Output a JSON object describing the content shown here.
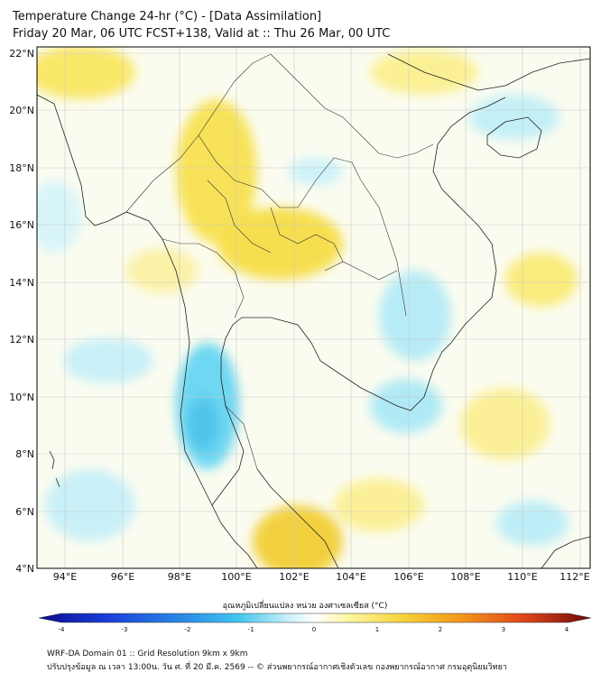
{
  "title": {
    "line1": "Temperature Change 24-hr (°C) - [Data Assimilation]",
    "line2": "Friday 20 Mar, 06 UTC FCST+138, Valid at :: Thu 26 Mar, 00 UTC"
  },
  "map": {
    "lat_labels": [
      "22°N",
      "20°N",
      "18°N",
      "16°N",
      "14°N",
      "12°N",
      "10°N",
      "8°N",
      "6°N",
      "4°N"
    ],
    "lon_labels": [
      "94°E",
      "96°E",
      "98°E",
      "100°E",
      "102°E",
      "104°E",
      "106°E",
      "108°E",
      "110°E",
      "112°E"
    ],
    "lat_range": [
      4,
      22.2
    ],
    "lon_range": [
      93,
      112.3
    ],
    "grid": true
  },
  "colorbar": {
    "label": "อุณหภูมิเปลี่ยนแปลง หน่วย องศาเซลเซียส (°C)",
    "ticks": [
      "-4",
      "-3",
      "-2",
      "-1",
      "0",
      "1",
      "2",
      "3",
      "4"
    ],
    "range": [
      -4,
      4
    ],
    "colors": [
      "#0a0a8c",
      "#1a3cd8",
      "#2a8ae6",
      "#3fc6ee",
      "#a7e8f6",
      "#ffffff",
      "#fff6a0",
      "#f7d23a",
      "#f39a1c",
      "#e0441a",
      "#a8120e",
      "#6a0a0a"
    ]
  },
  "footer": {
    "line1": "WRF-DA Domain 01 :: Grid Resolution 9km x 9km",
    "line2": "ปรับปรุงข้อมูล ณ เวลา 13:00น. วัน ศ. ที่ 20 มี.ค. 2569 -- © ส่วนพยากรณ์อากาศเชิงตัวเลข กองพยากรณ์อากาศ กรมอุตุนิยมวิทยา"
  }
}
